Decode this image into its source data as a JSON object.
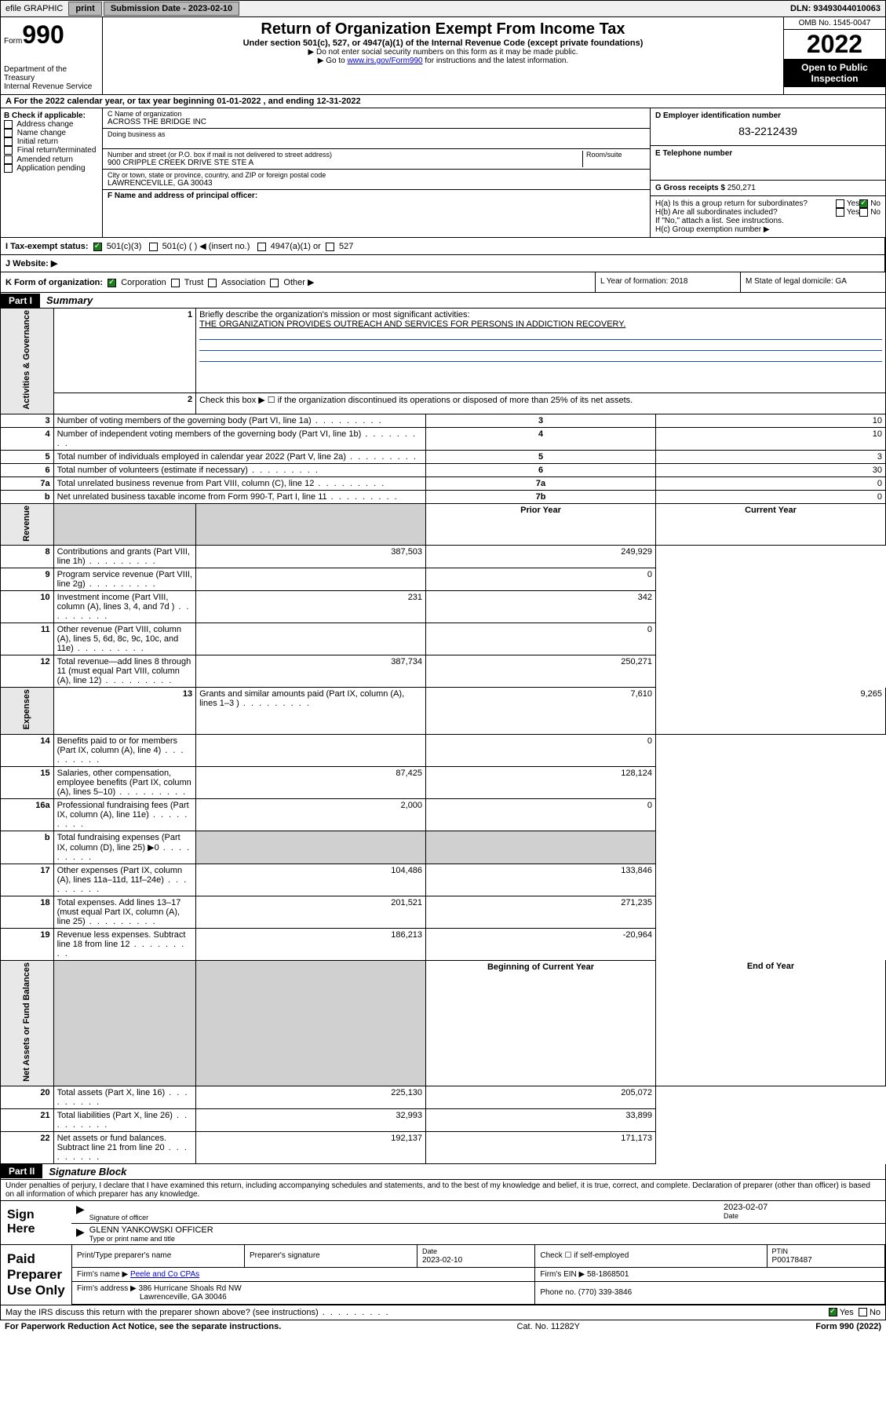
{
  "topbar": {
    "efile": "efile GRAPHIC",
    "print": "print",
    "subdate_label": "Submission Date - 2023-02-10",
    "dln": "DLN: 93493044010063"
  },
  "header": {
    "form_prefix": "Form",
    "form_number": "990",
    "dept": "Department of the Treasury",
    "irs": "Internal Revenue Service",
    "title": "Return of Organization Exempt From Income Tax",
    "sub": "Under section 501(c), 527, or 4947(a)(1) of the Internal Revenue Code (except private foundations)",
    "note1": "▶ Do not enter social security numbers on this form as it may be made public.",
    "note2_pre": "▶ Go to ",
    "note2_link": "www.irs.gov/Form990",
    "note2_post": " for instructions and the latest information.",
    "omb": "OMB No. 1545-0047",
    "year": "2022",
    "open": "Open to Public Inspection"
  },
  "line_a": "A For the 2022 calendar year, or tax year beginning 01-01-2022   , and ending 12-31-2022",
  "box_b": {
    "title": "B Check if applicable:",
    "items": [
      "Address change",
      "Name change",
      "Initial return",
      "Final return/terminated",
      "Amended return",
      "Application pending"
    ]
  },
  "box_c": {
    "label_name": "C Name of organization",
    "name": "ACROSS THE BRIDGE INC",
    "dba_label": "Doing business as",
    "addr_label": "Number and street (or P.O. box if mail is not delivered to street address)",
    "room_label": "Room/suite",
    "addr": "900 CRIPPLE CREEK DRIVE STE STE A",
    "city_label": "City or town, state or province, country, and ZIP or foreign postal code",
    "city": "LAWRENCEVILLE, GA  30043",
    "f_label": "F  Name and address of principal officer:"
  },
  "box_d": {
    "label": "D Employer identification number",
    "ein": "83-2212439",
    "e_label": "E Telephone number",
    "g_label": "G Gross receipts $",
    "g_val": "250,271"
  },
  "box_h": {
    "ha": "H(a)  Is this a group return for subordinates?",
    "hb": "H(b)  Are all subordinates included?",
    "hb_note": "If \"No,\" attach a list. See instructions.",
    "hc": "H(c)  Group exemption number ▶",
    "yes": "Yes",
    "no": "No"
  },
  "row_i": {
    "label": "I   Tax-exempt status:",
    "c3": "501(c)(3)",
    "c": "501(c) (  ) ◀ (insert no.)",
    "a1": "4947(a)(1) or",
    "s527": "527"
  },
  "row_j": {
    "label": "J   Website: ▶"
  },
  "row_k": {
    "label": "K Form of organization:",
    "corp": "Corporation",
    "trust": "Trust",
    "assoc": "Association",
    "other": "Other ▶",
    "l_label": "L Year of formation: 2018",
    "m_label": "M State of legal domicile: GA"
  },
  "parts": {
    "p1_badge": "Part I",
    "p1_title": "Summary",
    "p2_badge": "Part II",
    "p2_title": "Signature Block"
  },
  "tabs": {
    "gov": "Activities & Governance",
    "rev": "Revenue",
    "exp": "Expenses",
    "net": "Net Assets or Fund Balances"
  },
  "summary": {
    "l1_label": "Briefly describe the organization's mission or most significant activities:",
    "l1_text": "THE ORGANIZATION PROVIDES OUTREACH AND SERVICES FOR PERSONS IN ADDICTION RECOVERY.",
    "l2": "Check this box ▶ ☐  if the organization discontinued its operations or disposed of more than 25% of its net assets.",
    "rows_gov": [
      {
        "n": "3",
        "t": "Number of voting members of the governing body (Part VI, line 1a)",
        "box": "3",
        "v": "10"
      },
      {
        "n": "4",
        "t": "Number of independent voting members of the governing body (Part VI, line 1b)",
        "box": "4",
        "v": "10"
      },
      {
        "n": "5",
        "t": "Total number of individuals employed in calendar year 2022 (Part V, line 2a)",
        "box": "5",
        "v": "3"
      },
      {
        "n": "6",
        "t": "Total number of volunteers (estimate if necessary)",
        "box": "6",
        "v": "30"
      },
      {
        "n": "7a",
        "t": "Total unrelated business revenue from Part VIII, column (C), line 12",
        "box": "7a",
        "v": "0"
      },
      {
        "n": "b",
        "t": "Net unrelated business taxable income from Form 990-T, Part I, line 11",
        "box": "7b",
        "v": "0"
      }
    ],
    "hdr_prior": "Prior Year",
    "hdr_current": "Current Year",
    "rows_rev": [
      {
        "n": "8",
        "t": "Contributions and grants (Part VIII, line 1h)",
        "p": "387,503",
        "c": "249,929"
      },
      {
        "n": "9",
        "t": "Program service revenue (Part VIII, line 2g)",
        "p": "",
        "c": "0"
      },
      {
        "n": "10",
        "t": "Investment income (Part VIII, column (A), lines 3, 4, and 7d )",
        "p": "231",
        "c": "342"
      },
      {
        "n": "11",
        "t": "Other revenue (Part VIII, column (A), lines 5, 6d, 8c, 9c, 10c, and 11e)",
        "p": "",
        "c": "0"
      },
      {
        "n": "12",
        "t": "Total revenue—add lines 8 through 11 (must equal Part VIII, column (A), line 12)",
        "p": "387,734",
        "c": "250,271"
      }
    ],
    "rows_exp": [
      {
        "n": "13",
        "t": "Grants and similar amounts paid (Part IX, column (A), lines 1–3 )",
        "p": "7,610",
        "c": "9,265"
      },
      {
        "n": "14",
        "t": "Benefits paid to or for members (Part IX, column (A), line 4)",
        "p": "",
        "c": "0"
      },
      {
        "n": "15",
        "t": "Salaries, other compensation, employee benefits (Part IX, column (A), lines 5–10)",
        "p": "87,425",
        "c": "128,124"
      },
      {
        "n": "16a",
        "t": "Professional fundraising fees (Part IX, column (A), line 11e)",
        "p": "2,000",
        "c": "0"
      },
      {
        "n": "b",
        "t": "Total fundraising expenses (Part IX, column (D), line 25) ▶0",
        "p": "GRAY",
        "c": "GRAY"
      },
      {
        "n": "17",
        "t": "Other expenses (Part IX, column (A), lines 11a–11d, 11f–24e)",
        "p": "104,486",
        "c": "133,846"
      },
      {
        "n": "18",
        "t": "Total expenses. Add lines 13–17 (must equal Part IX, column (A), line 25)",
        "p": "201,521",
        "c": "271,235"
      },
      {
        "n": "19",
        "t": "Revenue less expenses. Subtract line 18 from line 12",
        "p": "186,213",
        "c": "-20,964"
      }
    ],
    "hdr_begin": "Beginning of Current Year",
    "hdr_end": "End of Year",
    "rows_net": [
      {
        "n": "20",
        "t": "Total assets (Part X, line 16)",
        "p": "225,130",
        "c": "205,072"
      },
      {
        "n": "21",
        "t": "Total liabilities (Part X, line 26)",
        "p": "32,993",
        "c": "33,899"
      },
      {
        "n": "22",
        "t": "Net assets or fund balances. Subtract line 21 from line 20",
        "p": "192,137",
        "c": "171,173"
      }
    ]
  },
  "sig": {
    "penalties": "Under penalties of perjury, I declare that I have examined this return, including accompanying schedules and statements, and to the best of my knowledge and belief, it is true, correct, and complete. Declaration of preparer (other than officer) is based on all information of which preparer has any knowledge.",
    "sign_here": "Sign Here",
    "sig_officer": "Signature of officer",
    "date_label": "Date",
    "date": "2023-02-07",
    "name": "GLENN YANKOWSKI OFFICER",
    "name_label": "Type or print name and title",
    "paid": "Paid Preparer Use Only",
    "prep_name_label": "Print/Type preparer's name",
    "prep_sig_label": "Preparer's signature",
    "prep_date_label": "Date",
    "prep_date": "2023-02-10",
    "check_label": "Check ☐ if self-employed",
    "ptin_label": "PTIN",
    "ptin": "P00178487",
    "firm_name_label": "Firm's name    ▶",
    "firm_name": "Peele and Co CPAs",
    "firm_ein_label": "Firm's EIN ▶",
    "firm_ein": "58-1868501",
    "firm_addr_label": "Firm's address ▶",
    "firm_addr1": "386 Hurricane Shoals Rd NW",
    "firm_addr2": "Lawrenceville, GA  30046",
    "phone_label": "Phone no.",
    "phone": "(770) 339-3846",
    "discuss": "May the IRS discuss this return with the preparer shown above? (see instructions)"
  },
  "footer": {
    "left": "For Paperwork Reduction Act Notice, see the separate instructions.",
    "mid": "Cat. No. 11282Y",
    "right": "Form 990 (2022)"
  }
}
